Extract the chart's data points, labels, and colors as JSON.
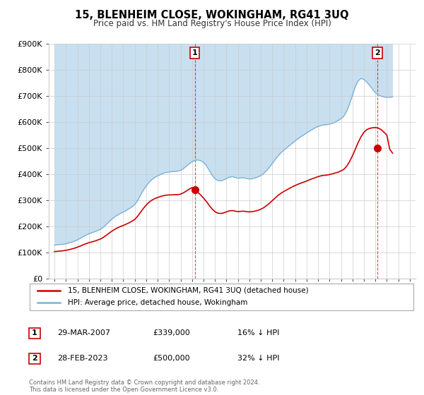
{
  "title": "15, BLENHEIM CLOSE, WOKINGHAM, RG41 3UQ",
  "subtitle": "Price paid vs. HM Land Registry's House Price Index (HPI)",
  "ylim": [
    0,
    900000
  ],
  "yticks": [
    0,
    100000,
    200000,
    300000,
    400000,
    500000,
    600000,
    700000,
    800000,
    900000
  ],
  "ytick_labels": [
    "£0",
    "£100K",
    "£200K",
    "£300K",
    "£400K",
    "£500K",
    "£600K",
    "£700K",
    "£800K",
    "£900K"
  ],
  "hpi_color": "#7ab3d9",
  "hpi_fill_color": "#c8dff0",
  "price_color": "#cc0000",
  "marker1_date_x": 2007.25,
  "marker1_price": 339000,
  "marker2_date_x": 2023.17,
  "marker2_price": 500000,
  "legend_label_price": "15, BLENHEIM CLOSE, WOKINGHAM, RG41 3UQ (detached house)",
  "legend_label_hpi": "HPI: Average price, detached house, Wokingham",
  "table_row1": [
    "1",
    "29-MAR-2007",
    "£339,000",
    "16% ↓ HPI"
  ],
  "table_row2": [
    "2",
    "28-FEB-2023",
    "£500,000",
    "32% ↓ HPI"
  ],
  "footer": "Contains HM Land Registry data © Crown copyright and database right 2024.\nThis data is licensed under the Open Government Licence v3.0.",
  "background_color": "#ffffff",
  "grid_color": "#cccccc",
  "hpi_data_years": [
    1995.0,
    1995.25,
    1995.5,
    1995.75,
    1996.0,
    1996.25,
    1996.5,
    1996.75,
    1997.0,
    1997.25,
    1997.5,
    1997.75,
    1998.0,
    1998.25,
    1998.5,
    1998.75,
    1999.0,
    1999.25,
    1999.5,
    1999.75,
    2000.0,
    2000.25,
    2000.5,
    2000.75,
    2001.0,
    2001.25,
    2001.5,
    2001.75,
    2002.0,
    2002.25,
    2002.5,
    2002.75,
    2003.0,
    2003.25,
    2003.5,
    2003.75,
    2004.0,
    2004.25,
    2004.5,
    2004.75,
    2005.0,
    2005.25,
    2005.5,
    2005.75,
    2006.0,
    2006.25,
    2006.5,
    2006.75,
    2007.0,
    2007.25,
    2007.5,
    2007.75,
    2008.0,
    2008.25,
    2008.5,
    2008.75,
    2009.0,
    2009.25,
    2009.5,
    2009.75,
    2010.0,
    2010.25,
    2010.5,
    2010.75,
    2011.0,
    2011.25,
    2011.5,
    2011.75,
    2012.0,
    2012.25,
    2012.5,
    2012.75,
    2013.0,
    2013.25,
    2013.5,
    2013.75,
    2014.0,
    2014.25,
    2014.5,
    2014.75,
    2015.0,
    2015.25,
    2015.5,
    2015.75,
    2016.0,
    2016.25,
    2016.5,
    2016.75,
    2017.0,
    2017.25,
    2017.5,
    2017.75,
    2018.0,
    2018.25,
    2018.5,
    2018.75,
    2019.0,
    2019.25,
    2019.5,
    2019.75,
    2020.0,
    2020.25,
    2020.5,
    2020.75,
    2021.0,
    2021.25,
    2021.5,
    2021.75,
    2022.0,
    2022.25,
    2022.5,
    2022.75,
    2023.0,
    2023.25,
    2023.5,
    2023.75,
    2024.0,
    2024.25,
    2024.5
  ],
  "hpi_values": [
    128000,
    129000,
    130000,
    131000,
    133000,
    136000,
    139000,
    143000,
    148000,
    154000,
    160000,
    166000,
    171000,
    175000,
    179000,
    183000,
    188000,
    196000,
    206000,
    217000,
    227000,
    236000,
    243000,
    249000,
    254000,
    260000,
    267000,
    274000,
    283000,
    298000,
    318000,
    338000,
    354000,
    368000,
    379000,
    387000,
    393000,
    398000,
    403000,
    406000,
    408000,
    409000,
    410000,
    411000,
    414000,
    421000,
    430000,
    439000,
    447000,
    452000,
    454000,
    451000,
    445000,
    432000,
    414000,
    395000,
    382000,
    375000,
    374000,
    377000,
    383000,
    388000,
    390000,
    387000,
    384000,
    385000,
    386000,
    383000,
    381000,
    382000,
    385000,
    389000,
    394000,
    402000,
    413000,
    426000,
    440000,
    455000,
    469000,
    481000,
    491000,
    500000,
    509000,
    518000,
    527000,
    535000,
    543000,
    550000,
    557000,
    564000,
    571000,
    577000,
    582000,
    586000,
    588000,
    589000,
    591000,
    594000,
    599000,
    605000,
    612000,
    622000,
    641000,
    669000,
    702000,
    735000,
    757000,
    766000,
    762000,
    752000,
    739000,
    724000,
    711000,
    703000,
    698000,
    695000,
    694000,
    694000,
    695000
  ],
  "price_data_years": [
    1995.0,
    1995.25,
    1995.5,
    1995.75,
    1996.0,
    1996.25,
    1996.5,
    1996.75,
    1997.0,
    1997.25,
    1997.5,
    1997.75,
    1998.0,
    1998.25,
    1998.5,
    1998.75,
    1999.0,
    1999.25,
    1999.5,
    1999.75,
    2000.0,
    2000.25,
    2000.5,
    2000.75,
    2001.0,
    2001.25,
    2001.5,
    2001.75,
    2002.0,
    2002.25,
    2002.5,
    2002.75,
    2003.0,
    2003.25,
    2003.5,
    2003.75,
    2004.0,
    2004.25,
    2004.5,
    2004.75,
    2005.0,
    2005.25,
    2005.5,
    2005.75,
    2006.0,
    2006.25,
    2006.5,
    2006.75,
    2007.0,
    2007.25,
    2007.5,
    2007.75,
    2008.0,
    2008.25,
    2008.5,
    2008.75,
    2009.0,
    2009.25,
    2009.5,
    2009.75,
    2010.0,
    2010.25,
    2010.5,
    2010.75,
    2011.0,
    2011.25,
    2011.5,
    2011.75,
    2012.0,
    2012.25,
    2012.5,
    2012.75,
    2013.0,
    2013.25,
    2013.5,
    2013.75,
    2014.0,
    2014.25,
    2014.5,
    2014.75,
    2015.0,
    2015.25,
    2015.5,
    2015.75,
    2016.0,
    2016.25,
    2016.5,
    2016.75,
    2017.0,
    2017.25,
    2017.5,
    2017.75,
    2018.0,
    2018.25,
    2018.5,
    2018.75,
    2019.0,
    2019.25,
    2019.5,
    2019.75,
    2020.0,
    2020.25,
    2020.5,
    2020.75,
    2021.0,
    2021.25,
    2021.5,
    2021.75,
    2022.0,
    2022.25,
    2022.5,
    2022.75,
    2023.0,
    2023.25,
    2023.5,
    2023.75,
    2024.0,
    2024.25,
    2024.5
  ],
  "price_values": [
    103000,
    104000,
    105000,
    106000,
    108000,
    110000,
    113000,
    116000,
    120000,
    124000,
    129000,
    133000,
    137000,
    140000,
    143000,
    147000,
    151000,
    157000,
    165000,
    173000,
    181000,
    188000,
    194000,
    199000,
    203000,
    208000,
    213000,
    219000,
    226000,
    238000,
    253000,
    268000,
    281000,
    292000,
    300000,
    306000,
    310000,
    314000,
    317000,
    319000,
    320000,
    320000,
    321000,
    321000,
    323000,
    328000,
    335000,
    342000,
    348000,
    339000,
    330000,
    320000,
    308000,
    295000,
    280000,
    266000,
    256000,
    250000,
    249000,
    251000,
    255000,
    259000,
    260000,
    258000,
    256000,
    257000,
    258000,
    256000,
    255000,
    256000,
    258000,
    261000,
    265000,
    271000,
    279000,
    288000,
    298000,
    308000,
    318000,
    326000,
    333000,
    339000,
    345000,
    351000,
    356000,
    361000,
    365000,
    369000,
    373000,
    378000,
    382000,
    386000,
    390000,
    393000,
    395000,
    396000,
    398000,
    401000,
    404000,
    407000,
    412000,
    418000,
    430000,
    448000,
    470000,
    495000,
    521000,
    543000,
    560000,
    570000,
    575000,
    577000,
    578000,
    576000,
    570000,
    560000,
    549000,
    495000,
    480000
  ],
  "xlim_start": 1994.5,
  "xlim_end": 2026.5,
  "xtick_years": [
    1995,
    1996,
    1997,
    1998,
    1999,
    2000,
    2001,
    2002,
    2003,
    2004,
    2005,
    2006,
    2007,
    2008,
    2009,
    2010,
    2011,
    2012,
    2013,
    2014,
    2015,
    2016,
    2017,
    2018,
    2019,
    2020,
    2021,
    2022,
    2023,
    2024,
    2025,
    2026
  ]
}
